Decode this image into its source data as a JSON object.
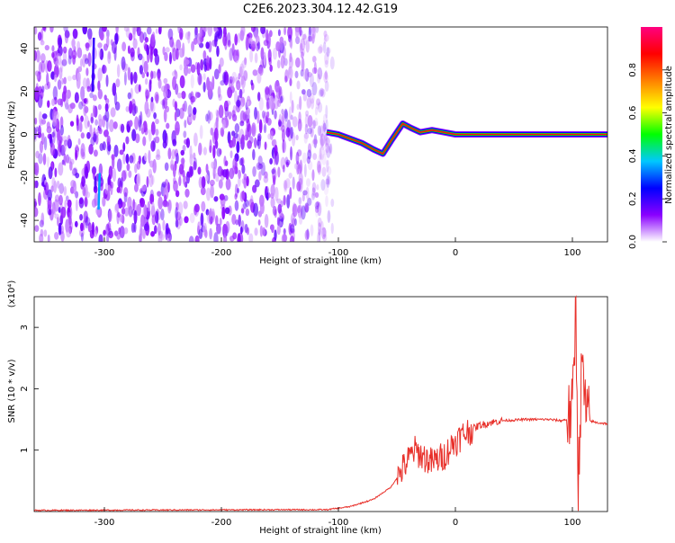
{
  "title": "C2E6.2023.304.12.42.G19",
  "chart_data": [
    {
      "type": "heatmap",
      "xlabel": "Height of straight line (km)",
      "ylabel": "Frequency (Hz)",
      "xlim": [
        -360,
        130
      ],
      "ylim": [
        -50,
        50
      ],
      "xticks": [
        -300,
        -200,
        -100,
        0,
        100
      ],
      "yticks": [
        -40,
        -20,
        0,
        20,
        40
      ],
      "colorbar": {
        "label": "Normalized spectral amplitude",
        "range": [
          0.0,
          1.0
        ],
        "ticks": [
          "0.0",
          "0.2",
          "0.4",
          "0.6",
          "0.8"
        ],
        "colormap": [
          "#ffffff",
          "#8a00ff",
          "#0000ff",
          "#00c8ff",
          "#00ff00",
          "#ffff00",
          "#ff8000",
          "#ff0000",
          "#ff0080"
        ]
      },
      "signal_track": {
        "x": [
          -110,
          -100,
          -90,
          -80,
          -70,
          -62,
          -55,
          -45,
          -38,
          -30,
          -20,
          -10,
          0,
          20,
          40,
          60,
          80,
          100,
          130
        ],
        "y": [
          1,
          0,
          -2,
          -4,
          -7,
          -9,
          -3,
          5,
          3,
          1,
          2,
          1,
          0,
          0,
          0,
          0,
          0,
          0,
          0
        ],
        "peak_amplitude": 0.9
      },
      "noise_region_x": [
        -360,
        -105
      ]
    },
    {
      "type": "line",
      "xlabel": "Height of straight line (km)",
      "ylabel": "SNR (10 * v/v)",
      "scale_label": "(x10⁴)",
      "xlim": [
        -360,
        130
      ],
      "ylim": [
        0,
        3.5
      ],
      "xticks": [
        -300,
        -200,
        -100,
        0,
        100
      ],
      "yticks": [
        1,
        2,
        3
      ],
      "color": "#e8302a",
      "series": [
        {
          "x": [
            -360,
            -150,
            -110,
            -90,
            -70,
            -55,
            -45,
            -35,
            -28,
            -20,
            -10,
            0,
            10,
            20,
            30,
            40,
            60,
            80,
            90,
            95,
            100,
            103,
            105,
            108,
            112,
            120,
            130
          ],
          "values": [
            0.02,
            0.03,
            0.03,
            0.08,
            0.2,
            0.4,
            0.7,
            1.0,
            0.9,
            0.8,
            0.9,
            1.15,
            1.3,
            1.4,
            1.45,
            1.48,
            1.5,
            1.5,
            1.48,
            1.5,
            1.6,
            3.4,
            0.4,
            2.4,
            1.5,
            1.45,
            1.43
          ]
        }
      ]
    }
  ]
}
